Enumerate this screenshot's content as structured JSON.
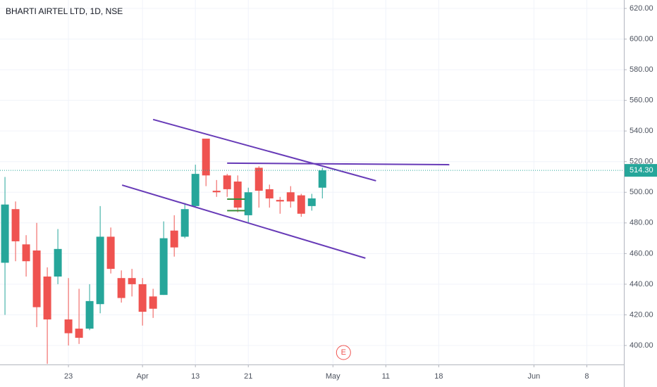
{
  "chart_data": {
    "type": "candlestick",
    "title": "BHARTI AIRTEL LTD, 1D, NSE",
    "x": [
      0,
      1,
      2,
      3,
      4,
      5,
      6,
      7,
      8,
      9,
      10,
      11,
      12,
      13,
      14,
      15,
      16,
      17,
      18,
      19,
      20,
      21,
      22,
      23,
      24,
      25,
      26,
      27,
      28,
      29,
      30
    ],
    "open": [
      454,
      489,
      466,
      462,
      445,
      445,
      417,
      411,
      411,
      427,
      471,
      444,
      444,
      440,
      432,
      433,
      475,
      471,
      491,
      535,
      501,
      511,
      507,
      485,
      516,
      502,
      495,
      500,
      498,
      491,
      503
    ],
    "high": [
      510,
      494,
      472,
      480,
      451,
      476,
      444,
      437,
      440,
      491,
      477,
      449,
      450,
      444,
      437,
      481,
      485,
      493,
      518,
      535,
      508,
      512,
      511,
      503,
      517,
      505,
      497,
      504,
      499,
      499,
      516
    ],
    "low": [
      420,
      455,
      445,
      412,
      388,
      440,
      400,
      401,
      410,
      421,
      447,
      428,
      432,
      413,
      418,
      433,
      458,
      470,
      490,
      504,
      497,
      497,
      487,
      480,
      490,
      490,
      486,
      490,
      484,
      488,
      496
    ],
    "close": [
      492,
      468,
      455,
      425,
      417,
      463,
      408,
      405,
      429,
      471,
      450,
      431,
      440,
      422,
      424,
      470,
      464,
      489,
      512,
      511,
      500,
      502,
      490,
      500,
      501,
      496,
      494,
      494,
      486,
      496,
      514.3
    ],
    "up_color": "#26a69a",
    "down_color": "#ef5350",
    "xlim": [
      -0.47,
      58.5
    ],
    "ylim": [
      387.6,
      625.5
    ],
    "xticks": [
      {
        "value": 6,
        "label": "23"
      },
      {
        "value": 13,
        "label": "Apr"
      },
      {
        "value": 18,
        "label": "13"
      },
      {
        "value": 23,
        "label": "21"
      },
      {
        "value": 31,
        "label": "May"
      },
      {
        "value": 36,
        "label": "11"
      },
      {
        "value": 41,
        "label": "18"
      },
      {
        "value": 50,
        "label": "Jun"
      },
      {
        "value": 55,
        "label": "8"
      }
    ],
    "yticks": [
      {
        "value": 400,
        "label": "400.00"
      },
      {
        "value": 420,
        "label": "420.00"
      },
      {
        "value": 440,
        "label": "440.00"
      },
      {
        "value": 460,
        "label": "460.00"
      },
      {
        "value": 480,
        "label": "480.00"
      },
      {
        "value": 500,
        "label": "500.00"
      },
      {
        "value": 520,
        "label": "520.00"
      },
      {
        "value": 540,
        "label": "540.00"
      },
      {
        "value": 560,
        "label": "560.00"
      },
      {
        "value": 580,
        "label": "580.00"
      },
      {
        "value": 600,
        "label": "600.00"
      },
      {
        "value": 620,
        "label": "620.00"
      }
    ],
    "grid": true,
    "last_price": 514.3,
    "last_price_label": "514.30",
    "trend_lines": [
      {
        "color": "#673ab7",
        "x": [
          14,
          35.07
        ],
        "y": [
          547.5,
          507.5
        ]
      },
      {
        "color": "#673ab7",
        "x": [
          11.07,
          34.07
        ],
        "y": [
          504.7,
          457
        ]
      },
      {
        "color": "#673ab7",
        "x": [
          21,
          42
        ],
        "y": [
          519,
          518
        ]
      },
      {
        "color": "#388e3c",
        "x": [
          21,
          22.7
        ],
        "y": [
          495.5,
          495.5
        ]
      },
      {
        "color": "#388e3c",
        "x": [
          21,
          22.7
        ],
        "y": [
          488,
          488
        ]
      }
    ],
    "event_marker": {
      "x": 32,
      "label": "E"
    }
  }
}
